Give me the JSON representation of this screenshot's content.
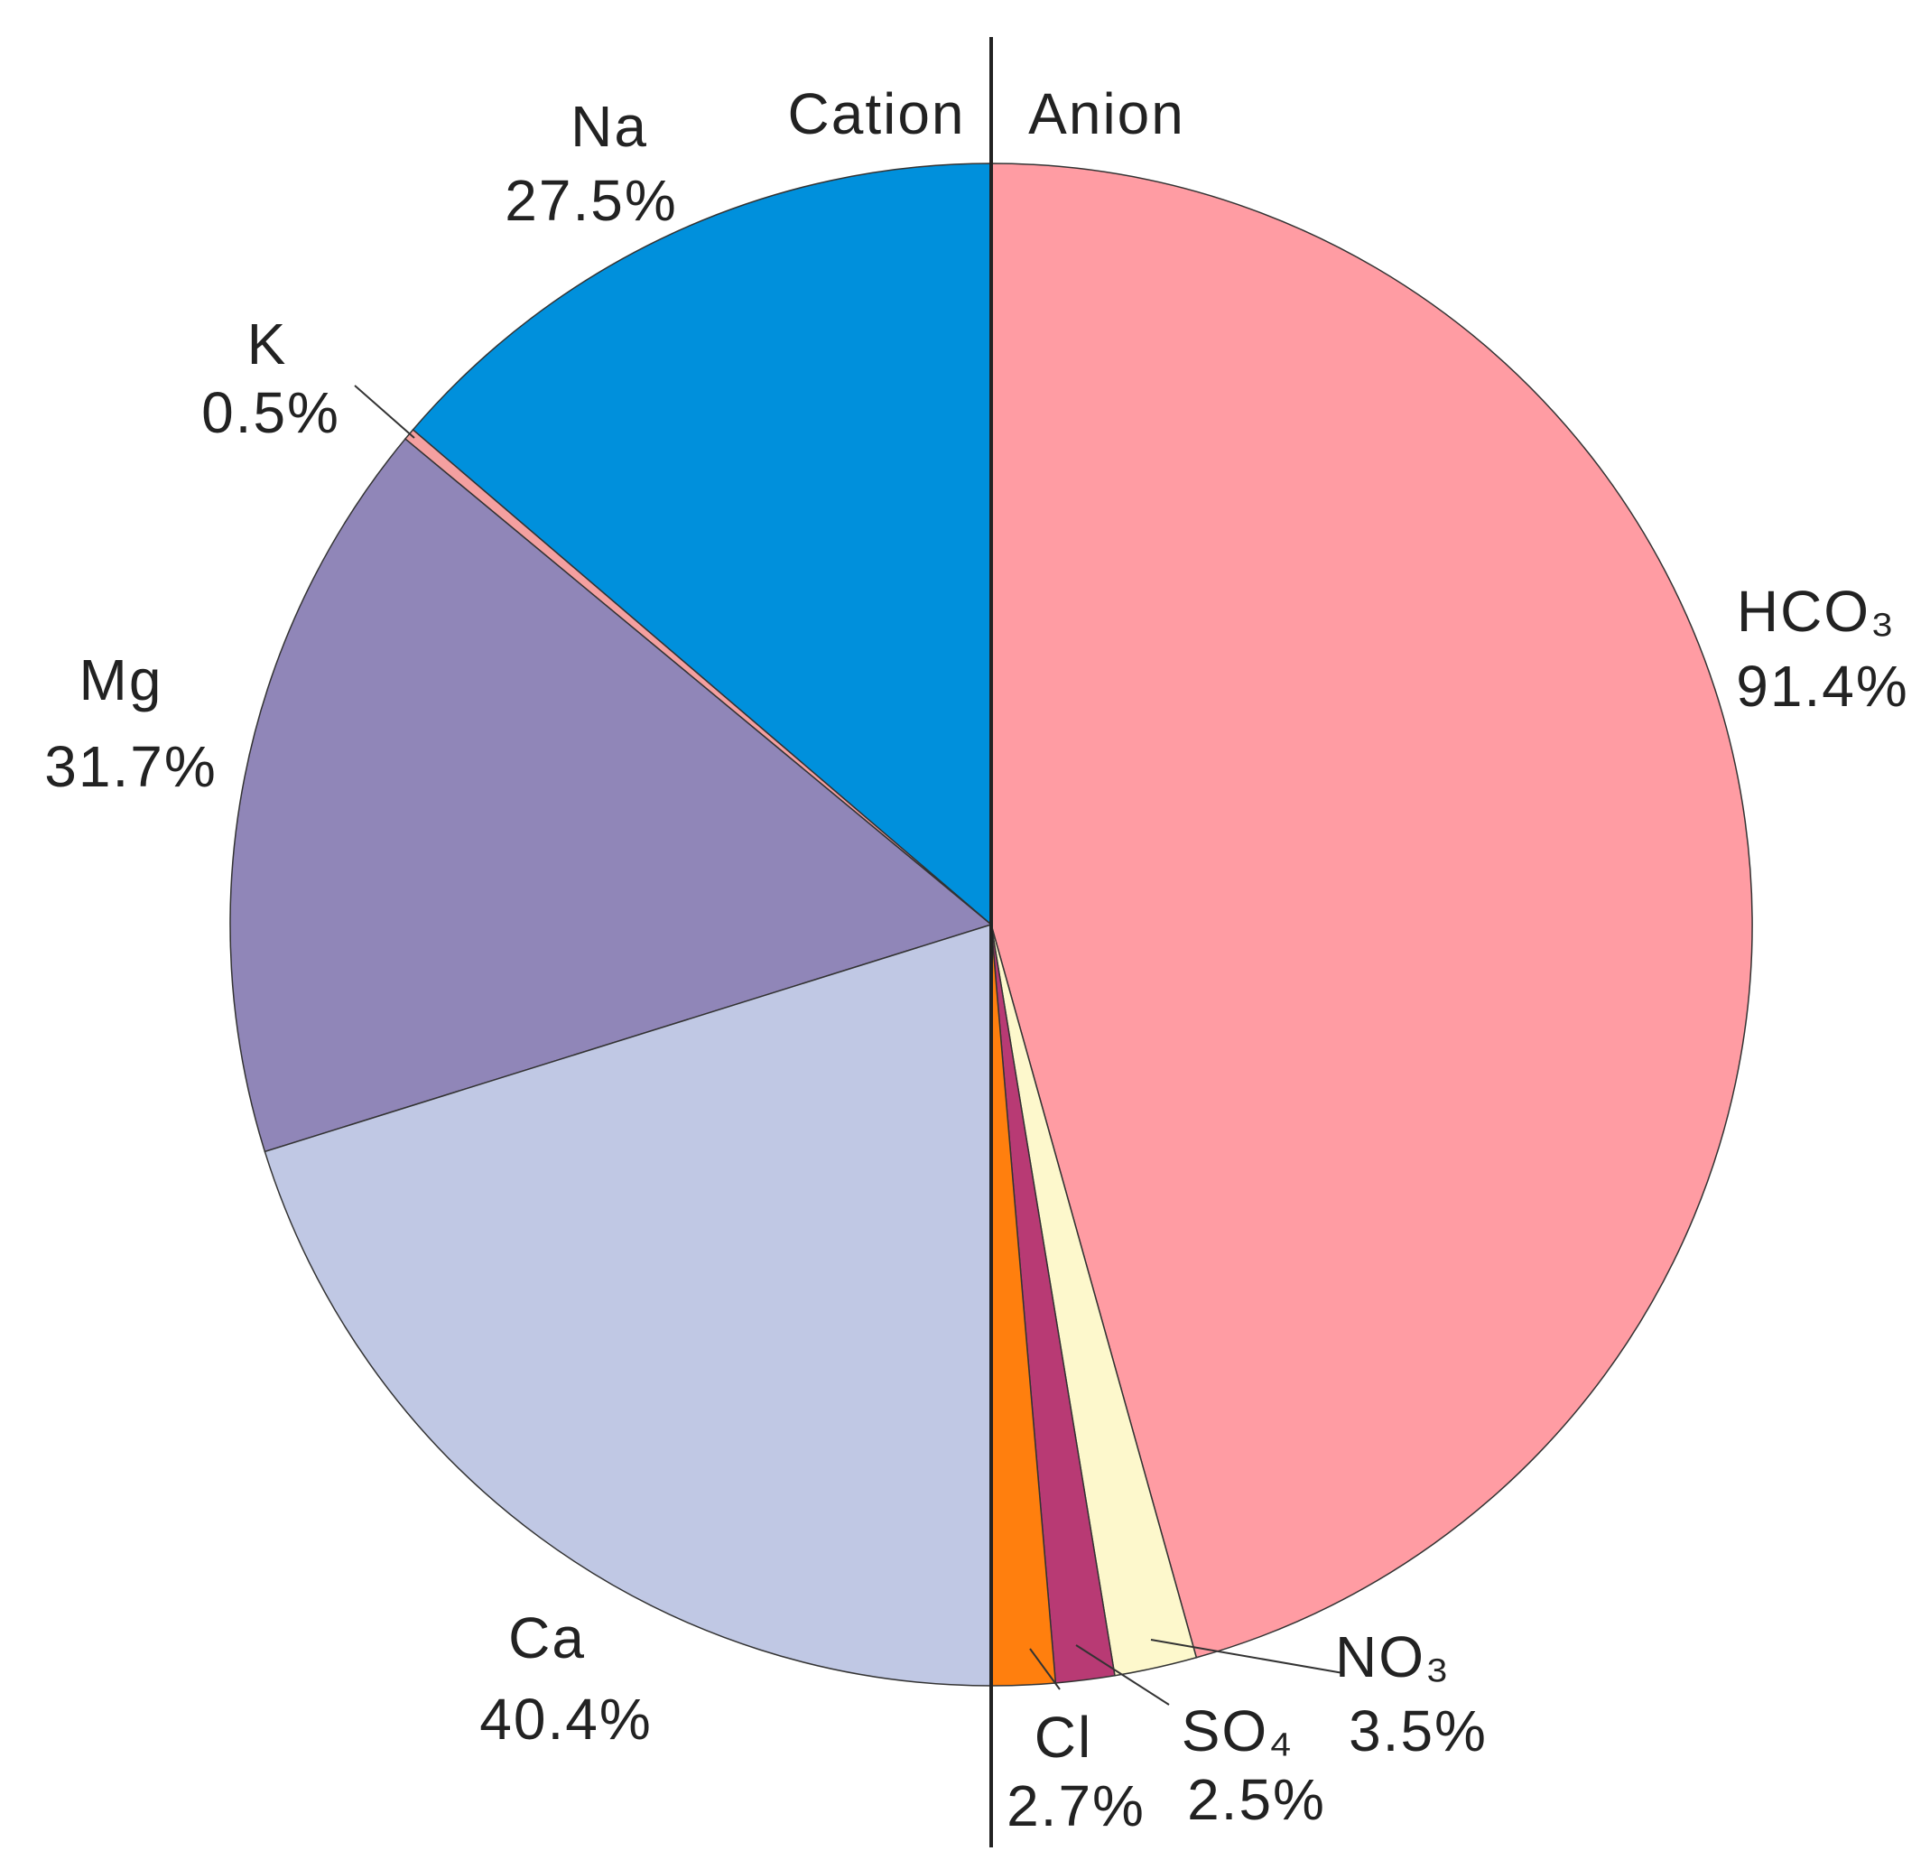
{
  "chart_data": {
    "type": "pie",
    "series": [
      {
        "name": "Cation",
        "categories": [
          "Na",
          "K",
          "Mg",
          "Ca"
        ],
        "values": [
          27.5,
          0.5,
          31.7,
          40.4
        ],
        "value_labels": [
          "27.5%",
          "0.5%",
          "31.7%",
          "40.4%"
        ],
        "colors": [
          "#0090dc",
          "#f4a0a0",
          "#9086b8",
          "#c0c8e4"
        ]
      },
      {
        "name": "Anion",
        "categories": [
          "HCO₃",
          "NO₃",
          "SO₄",
          "Cl"
        ],
        "values": [
          91.4,
          3.5,
          2.5,
          2.7
        ],
        "value_labels": [
          "91.4%",
          "3.5%",
          "2.5%",
          "2.7%"
        ],
        "colors": [
          "#ff9ca3",
          "#fdf8cc",
          "#b83a74",
          "#ff7f0e"
        ]
      }
    ]
  }
}
